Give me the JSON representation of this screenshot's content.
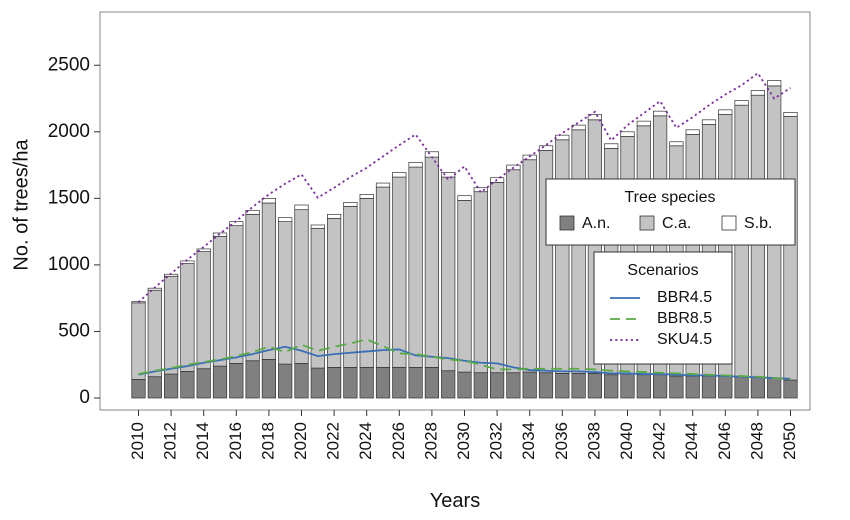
{
  "chart_data": {
    "type": "bar",
    "stacked": true,
    "xlabel": "Years",
    "ylabel": "No. of trees/ha",
    "ylim": [
      -90,
      2900
    ],
    "yticks": [
      0,
      500,
      1000,
      1500,
      2000,
      2500
    ],
    "grid": false,
    "x": [
      2010,
      2011,
      2012,
      2013,
      2014,
      2015,
      2016,
      2017,
      2018,
      2019,
      2020,
      2021,
      2022,
      2023,
      2024,
      2025,
      2026,
      2027,
      2028,
      2029,
      2030,
      2031,
      2032,
      2033,
      2034,
      2035,
      2036,
      2037,
      2038,
      2039,
      2040,
      2041,
      2042,
      2043,
      2044,
      2045,
      2046,
      2047,
      2048,
      2049,
      2050
    ],
    "xticklabels": [
      "2010",
      "2012",
      "2014",
      "2016",
      "2018",
      "2020",
      "2022",
      "2024",
      "2026",
      "2028",
      "2030",
      "2032",
      "2034",
      "2036",
      "2038",
      "2040",
      "2042",
      "2044",
      "2046",
      "2048",
      "2050"
    ],
    "stack_legend": {
      "title": "Tree species",
      "position": "right",
      "entries": [
        {
          "name": "A.n.",
          "color": "#808080"
        },
        {
          "name": "C.a.",
          "color": "#c3c3c3"
        },
        {
          "name": "S.b.",
          "color": "#ffffff"
        }
      ]
    },
    "stack_series": [
      {
        "name": "A.n.",
        "color": "#808080",
        "values": [
          140,
          160,
          180,
          200,
          220,
          240,
          260,
          280,
          290,
          255,
          260,
          225,
          230,
          230,
          230,
          230,
          230,
          230,
          230,
          205,
          195,
          190,
          190,
          190,
          195,
          190,
          185,
          185,
          185,
          175,
          180,
          175,
          175,
          165,
          165,
          165,
          165,
          160,
          155,
          150,
          135
        ]
      },
      {
        "name": "C.a.",
        "color": "#c3c3c3",
        "values": [
          575,
          650,
          735,
          810,
          880,
          975,
          1035,
          1100,
          1175,
          1070,
          1155,
          1050,
          1120,
          1210,
          1270,
          1355,
          1430,
          1505,
          1580,
          1455,
          1290,
          1360,
          1430,
          1525,
          1595,
          1670,
          1755,
          1830,
          1905,
          1700,
          1785,
          1870,
          1945,
          1730,
          1815,
          1890,
          1965,
          2040,
          2120,
          2195,
          1980
        ]
      },
      {
        "name": "S.b.",
        "color": "#ffffff",
        "values": [
          10,
          15,
          15,
          20,
          20,
          25,
          30,
          30,
          35,
          30,
          35,
          25,
          30,
          30,
          30,
          30,
          35,
          35,
          40,
          35,
          35,
          30,
          35,
          35,
          35,
          35,
          35,
          35,
          40,
          35,
          35,
          35,
          35,
          30,
          35,
          35,
          35,
          35,
          35,
          40,
          30
        ]
      }
    ],
    "lines_legend": {
      "title": "Scenarios",
      "position": "right",
      "entries": [
        {
          "name": "BBR4.5",
          "color": "#3a6fb5",
          "dash": "solid"
        },
        {
          "name": "BBR8.5",
          "color": "#5aaa46",
          "dash": "long-dash"
        },
        {
          "name": "SKU4.5",
          "color": "#7b2d9c",
          "dash": "dotted"
        }
      ]
    },
    "lines": [
      {
        "name": "BBR4.5",
        "color": "#3a6fb5",
        "values": [
          175,
          200,
          220,
          240,
          265,
          285,
          305,
          330,
          360,
          385,
          355,
          315,
          330,
          340,
          350,
          360,
          365,
          320,
          310,
          300,
          280,
          265,
          260,
          230,
          210,
          205,
          200,
          200,
          195,
          185,
          185,
          180,
          180,
          175,
          170,
          170,
          165,
          160,
          155,
          150,
          145
        ]
      },
      {
        "name": "BBR8.5",
        "color": "#5aaa46",
        "values": [
          180,
          205,
          225,
          250,
          270,
          290,
          315,
          345,
          385,
          345,
          400,
          355,
          385,
          410,
          440,
          390,
          335,
          330,
          310,
          290,
          280,
          250,
          215,
          215,
          220,
          220,
          220,
          220,
          215,
          205,
          200,
          195,
          190,
          185,
          180,
          175,
          170,
          165,
          160,
          150,
          140
        ]
      },
      {
        "name": "SKU4.5",
        "color": "#7b2d9c",
        "values": [
          720,
          830,
          935,
          1040,
          1135,
          1235,
          1330,
          1435,
          1530,
          1610,
          1680,
          1505,
          1580,
          1660,
          1730,
          1815,
          1900,
          1980,
          1810,
          1640,
          1740,
          1545,
          1640,
          1730,
          1815,
          1900,
          1990,
          2070,
          2150,
          1935,
          2050,
          2140,
          2230,
          2030,
          2110,
          2200,
          2280,
          2350,
          2440,
          2250,
          2330
        ]
      }
    ]
  }
}
